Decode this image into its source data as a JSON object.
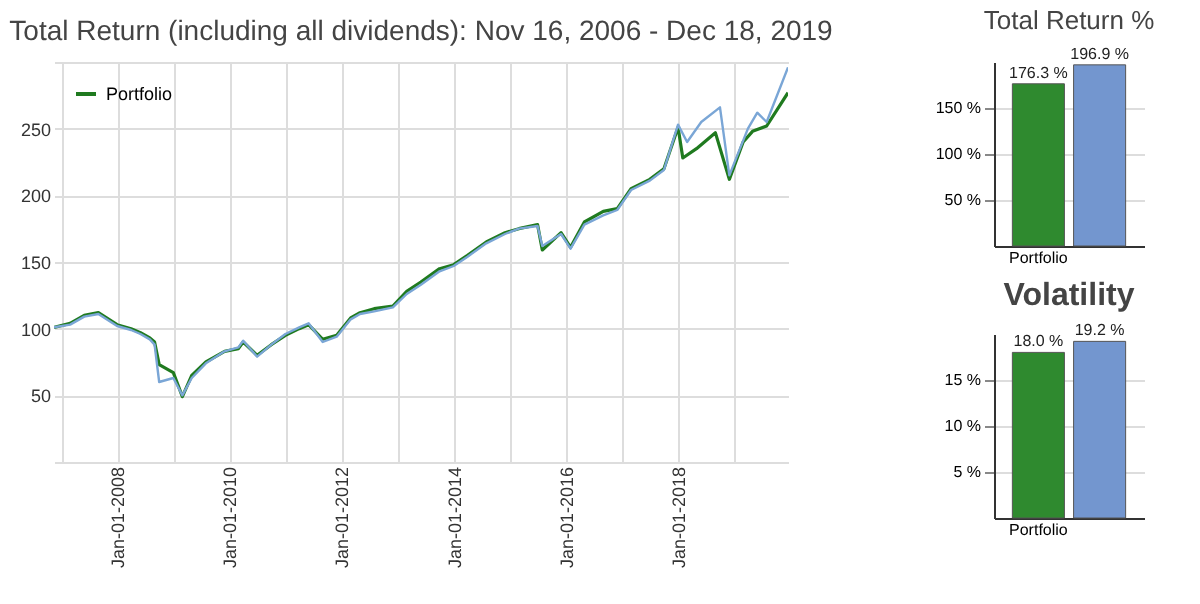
{
  "chart_data": [
    {
      "type": "line",
      "title": "Total Return (including all dividends): Nov 16, 2006 - Dec 18, 2019",
      "legend": "top left",
      "grid": true,
      "line_style": "solid",
      "marker": "none",
      "xlim": [
        "2006-11-16",
        "2019-12-18"
      ],
      "xticks": [
        {
          "value": "2007-01-01",
          "label": null
        },
        {
          "value": "2008-01-01",
          "label": "Jan-01-2008"
        },
        {
          "value": "2009-01-01",
          "label": null
        },
        {
          "value": "2010-01-01",
          "label": "Jan-01-2010"
        },
        {
          "value": "2011-01-01",
          "label": null
        },
        {
          "value": "2012-01-01",
          "label": "Jan-01-2012"
        },
        {
          "value": "2013-01-01",
          "label": null
        },
        {
          "value": "2014-01-01",
          "label": "Jan-01-2014"
        },
        {
          "value": "2015-01-01",
          "label": null
        },
        {
          "value": "2016-01-01",
          "label": "Jan-01-2016"
        },
        {
          "value": "2017-01-01",
          "label": null
        },
        {
          "value": "2018-01-01",
          "label": "Jan-01-2018"
        },
        {
          "value": "2019-01-01",
          "label": null
        }
      ],
      "ylim": [
        0,
        300
      ],
      "yticks": [
        {
          "value": 0,
          "label": null
        },
        50,
        100,
        150,
        200,
        250,
        {
          "value": 300,
          "label": null
        }
      ],
      "series": [
        {
          "name": "Portfolio",
          "color": "#1f7a1f",
          "x": [
            "2006-11-16",
            "2007-03",
            "2007-06",
            "2007-09",
            "2008-01",
            "2008-04",
            "2008-06",
            "2008-08",
            "2008-09",
            "2008-10",
            "2009-01",
            "2009-03",
            "2009-05",
            "2009-08",
            "2009-12",
            "2010-03",
            "2010-04",
            "2010-07",
            "2010-10",
            "2011-01",
            "2011-04",
            "2011-06",
            "2011-09",
            "2011-12",
            "2012-03",
            "2012-05",
            "2012-08",
            "2012-12",
            "2013-03",
            "2013-06",
            "2013-10",
            "2014-01",
            "2014-04",
            "2014-08",
            "2014-12",
            "2015-03",
            "2015-07",
            "2015-08",
            "2015-12",
            "2016-02",
            "2016-05",
            "2016-09",
            "2016-12",
            "2017-03",
            "2017-07",
            "2017-10",
            "2018-01",
            "2018-02",
            "2018-05",
            "2018-09",
            "2018-12",
            "2019-03",
            "2019-05",
            "2019-08",
            "2019-12-18"
          ],
          "values": [
            101,
            104,
            110,
            112,
            103,
            100,
            97,
            93,
            90,
            73,
            67,
            49,
            65,
            75,
            83,
            85,
            90,
            80,
            88,
            95,
            100,
            103,
            92,
            95,
            108,
            112,
            115,
            117,
            128,
            135,
            145,
            148,
            155,
            165,
            172,
            175,
            178,
            159,
            172,
            161,
            180,
            188,
            190,
            205,
            212,
            220,
            251,
            228,
            235,
            247,
            212,
            240,
            248,
            252,
            277
          ]
        },
        {
          "color": "#7aa6d6",
          "x": [
            "2006-11-16",
            "2007-03",
            "2007-06",
            "2007-09",
            "2008-01",
            "2008-04",
            "2008-06",
            "2008-08",
            "2008-09",
            "2008-10",
            "2009-01",
            "2009-03",
            "2009-05",
            "2009-08",
            "2009-12",
            "2010-03",
            "2010-04",
            "2010-07",
            "2010-10",
            "2011-01",
            "2011-04",
            "2011-06",
            "2011-09",
            "2011-12",
            "2012-03",
            "2012-05",
            "2012-08",
            "2012-12",
            "2013-03",
            "2013-06",
            "2013-10",
            "2014-01",
            "2014-04",
            "2014-08",
            "2014-12",
            "2015-03",
            "2015-07",
            "2015-08",
            "2015-12",
            "2016-02",
            "2016-05",
            "2016-09",
            "2016-12",
            "2017-03",
            "2017-07",
            "2017-10",
            "2018-01",
            "2018-03",
            "2018-06",
            "2018-10",
            "2018-12",
            "2019-04",
            "2019-06",
            "2019-08",
            "2019-12-18"
          ],
          "values": [
            101,
            103,
            109,
            111,
            102,
            99,
            96,
            92,
            88,
            60,
            63,
            50,
            63,
            74,
            83,
            86,
            91,
            79,
            88,
            96,
            101,
            104,
            90,
            94,
            107,
            111,
            113,
            116,
            126,
            133,
            143,
            147,
            154,
            164,
            171,
            175,
            177,
            162,
            171,
            160,
            178,
            185,
            189,
            204,
            211,
            219,
            253,
            240,
            255,
            266,
            215,
            250,
            262,
            255,
            296
          ]
        }
      ]
    },
    {
      "type": "bar",
      "title": "Total Return %",
      "categories": [
        "Portfolio",
        null
      ],
      "values": [
        176.3,
        196.9
      ],
      "colors": [
        "#2f8a2f",
        "#7396cf"
      ],
      "value_labels": [
        "176.3 %",
        "196.9 %"
      ],
      "grid": "y",
      "ylim": [
        0,
        200
      ],
      "yticks": [
        {
          "value": 50,
          "label": "50 %"
        },
        {
          "value": 100,
          "label": "100 %"
        },
        {
          "value": 150,
          "label": "150 %"
        }
      ]
    },
    {
      "type": "bar",
      "title": "Volatility",
      "categories": [
        "Portfolio",
        null
      ],
      "values": [
        18.0,
        19.2
      ],
      "colors": [
        "#2f8a2f",
        "#7396cf"
      ],
      "value_labels": [
        "18.0 %",
        "19.2 %"
      ],
      "grid": "y",
      "ylim": [
        0,
        20
      ],
      "yticks": [
        {
          "value": 5,
          "label": "5 %"
        },
        {
          "value": 10,
          "label": "10 %"
        },
        {
          "value": 15,
          "label": "15 %"
        }
      ]
    }
  ]
}
